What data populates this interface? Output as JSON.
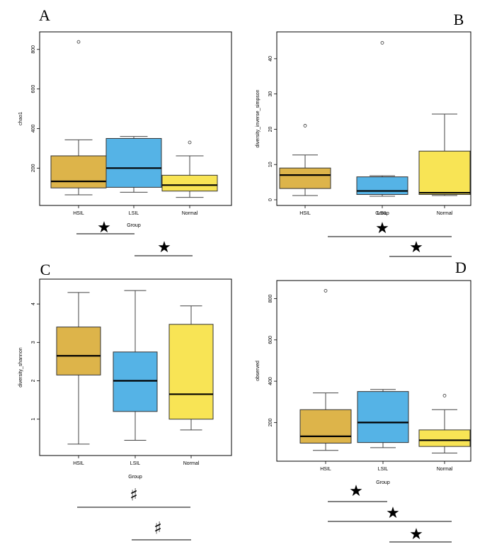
{
  "colors": {
    "HSIL": "#DDB44A",
    "LSIL": "#55B3E6",
    "Normal": "#F8E455"
  },
  "chart_data": [
    {
      "type": "box",
      "panel": "A",
      "xlabel": "Group",
      "ylabel": "chao1",
      "categories": [
        "HSIL",
        "LSIL",
        "Normal"
      ],
      "ylim": [
        40,
        860
      ],
      "yticks": [
        "200",
        "400",
        "600",
        "800"
      ],
      "boxes": [
        {
          "category": "HSIL",
          "min": 65,
          "q1": 100,
          "median": 133,
          "q3": 262,
          "max": 343,
          "outliers": [
            838
          ]
        },
        {
          "category": "LSIL",
          "min": 78,
          "q1": 103,
          "median": 200,
          "q3": 350,
          "max": 360,
          "outliers": []
        },
        {
          "category": "Normal",
          "min": 52,
          "q1": 84,
          "median": 114,
          "q3": 164,
          "max": 262,
          "outliers": [
            330
          ]
        }
      ],
      "significance": [
        {
          "from": "HSIL",
          "to": "LSIL",
          "symbol": "★"
        },
        {
          "from": "LSIL",
          "to": "Normal",
          "symbol": "★"
        }
      ]
    },
    {
      "type": "box",
      "panel": "B",
      "xlabel": "Group",
      "ylabel": "diversity_inverse_simpson",
      "categories": [
        "HSIL",
        "LSIL",
        "Normal"
      ],
      "ylim": [
        0,
        46
      ],
      "yticks": [
        "0",
        "10",
        "20",
        "30",
        "40"
      ],
      "boxes": [
        {
          "category": "HSIL",
          "min": 1.2,
          "q1": 3.2,
          "median": 7.0,
          "q3": 9.0,
          "max": 12.7,
          "outliers": [
            21.0
          ]
        },
        {
          "category": "LSIL",
          "min": 1.0,
          "q1": 1.5,
          "median": 2.5,
          "q3": 6.5,
          "max": 6.8,
          "outliers": [
            44.5
          ]
        },
        {
          "category": "Normal",
          "min": 1.2,
          "q1": 1.5,
          "median": 2.0,
          "q3": 13.8,
          "max": 24.3,
          "outliers": []
        }
      ],
      "significance": [
        {
          "from": "HSIL",
          "to": "Normal",
          "symbol": "★"
        },
        {
          "from": "LSIL",
          "to": "Normal",
          "symbol": "★"
        }
      ]
    },
    {
      "type": "box",
      "panel": "C",
      "xlabel": "Group",
      "ylabel": "diversity_shannon",
      "categories": [
        "HSIL",
        "LSIL",
        "Normal"
      ],
      "ylim": [
        0.2,
        4.5
      ],
      "yticks": [
        "1",
        "2",
        "3",
        "4"
      ],
      "boxes": [
        {
          "category": "HSIL",
          "min": 0.35,
          "q1": 2.15,
          "median": 2.65,
          "q3": 3.4,
          "max": 4.3,
          "outliers": []
        },
        {
          "category": "LSIL",
          "min": 0.45,
          "q1": 1.2,
          "median": 2.0,
          "q3": 2.75,
          "max": 4.35,
          "outliers": []
        },
        {
          "category": "Normal",
          "min": 0.72,
          "q1": 1.0,
          "median": 1.65,
          "q3": 3.47,
          "max": 3.95,
          "outliers": []
        }
      ],
      "significance": [
        {
          "from": "HSIL",
          "to": "Normal",
          "symbol": "♯"
        },
        {
          "from": "LSIL",
          "to": "Normal",
          "symbol": "♯"
        }
      ]
    },
    {
      "type": "box",
      "panel": "D",
      "xlabel": "Group",
      "ylabel": "observed",
      "categories": [
        "HSIL",
        "LSIL",
        "Normal"
      ],
      "ylim": [
        40,
        860
      ],
      "yticks": [
        "200",
        "400",
        "600",
        "800"
      ],
      "boxes": [
        {
          "category": "HSIL",
          "min": 65,
          "q1": 100,
          "median": 133,
          "q3": 262,
          "max": 343,
          "outliers": [
            838
          ]
        },
        {
          "category": "LSIL",
          "min": 78,
          "q1": 103,
          "median": 200,
          "q3": 350,
          "max": 360,
          "outliers": []
        },
        {
          "category": "Normal",
          "min": 52,
          "q1": 84,
          "median": 114,
          "q3": 164,
          "max": 262,
          "outliers": [
            330
          ]
        }
      ],
      "significance": [
        {
          "from": "HSIL",
          "to": "LSIL",
          "symbol": "★"
        },
        {
          "from": "HSIL",
          "to": "Normal",
          "symbol": "★"
        },
        {
          "from": "LSIL",
          "to": "Normal",
          "symbol": "★"
        }
      ]
    }
  ]
}
